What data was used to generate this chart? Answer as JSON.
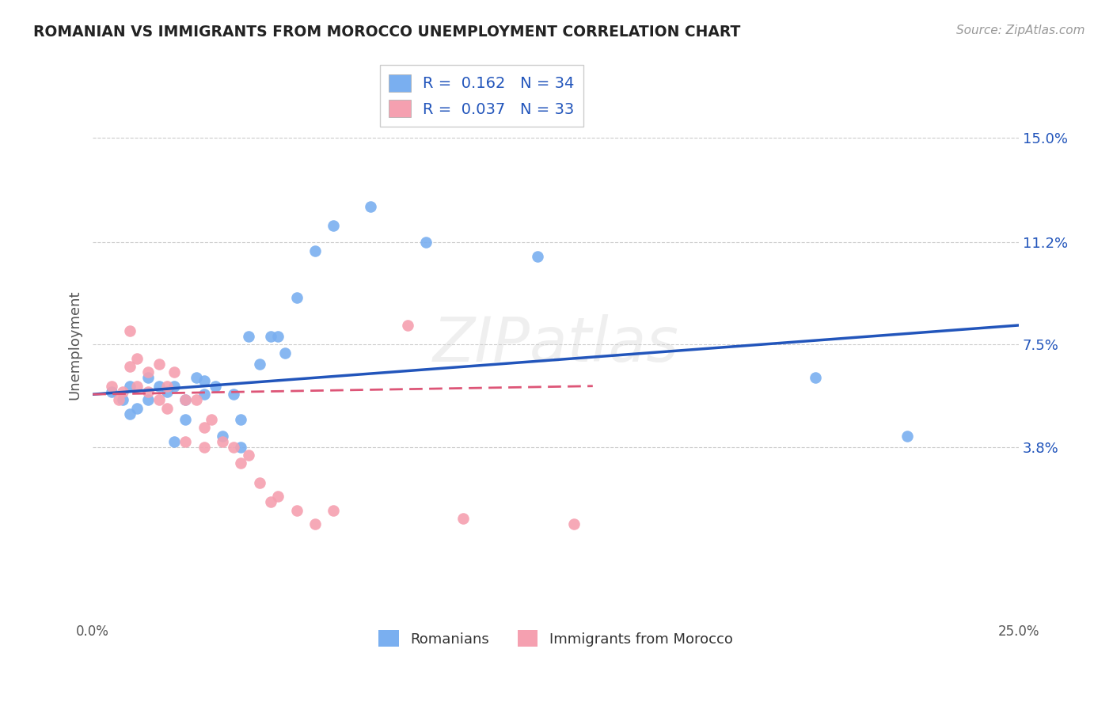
{
  "title": "ROMANIAN VS IMMIGRANTS FROM MOROCCO UNEMPLOYMENT CORRELATION CHART",
  "source": "Source: ZipAtlas.com",
  "ylabel": "Unemployment",
  "ytick_labels": [
    "15.0%",
    "11.2%",
    "7.5%",
    "3.8%"
  ],
  "ytick_values": [
    0.15,
    0.112,
    0.075,
    0.038
  ],
  "xlim": [
    0.0,
    0.25
  ],
  "ylim": [
    -0.025,
    0.175
  ],
  "legend_entry1": "R =  0.162   N = 34",
  "legend_entry2": "R =  0.037   N = 33",
  "legend_label1": "Romanians",
  "legend_label2": "Immigrants from Morocco",
  "color_blue": "#7aaff0",
  "color_pink": "#f5a0b0",
  "color_line_blue": "#2255bb",
  "color_line_pink": "#dd5577",
  "watermark": "ZIPatlas",
  "blue_x": [
    0.005,
    0.008,
    0.01,
    0.01,
    0.012,
    0.015,
    0.015,
    0.018,
    0.02,
    0.022,
    0.022,
    0.025,
    0.025,
    0.028,
    0.03,
    0.03,
    0.033,
    0.035,
    0.038,
    0.04,
    0.04,
    0.042,
    0.045,
    0.048,
    0.05,
    0.052,
    0.055,
    0.06,
    0.065,
    0.075,
    0.09,
    0.12,
    0.195,
    0.22
  ],
  "blue_y": [
    0.058,
    0.055,
    0.06,
    0.05,
    0.052,
    0.063,
    0.055,
    0.06,
    0.058,
    0.06,
    0.04,
    0.055,
    0.048,
    0.063,
    0.062,
    0.057,
    0.06,
    0.042,
    0.057,
    0.048,
    0.038,
    0.078,
    0.068,
    0.078,
    0.078,
    0.072,
    0.092,
    0.109,
    0.118,
    0.125,
    0.112,
    0.107,
    0.063,
    0.042
  ],
  "pink_x": [
    0.005,
    0.007,
    0.008,
    0.01,
    0.01,
    0.012,
    0.012,
    0.015,
    0.015,
    0.018,
    0.018,
    0.02,
    0.02,
    0.022,
    0.025,
    0.025,
    0.028,
    0.03,
    0.03,
    0.032,
    0.035,
    0.038,
    0.04,
    0.042,
    0.045,
    0.048,
    0.05,
    0.055,
    0.06,
    0.065,
    0.085,
    0.1,
    0.13
  ],
  "pink_y": [
    0.06,
    0.055,
    0.058,
    0.08,
    0.067,
    0.07,
    0.06,
    0.065,
    0.058,
    0.068,
    0.055,
    0.06,
    0.052,
    0.065,
    0.055,
    0.04,
    0.055,
    0.045,
    0.038,
    0.048,
    0.04,
    0.038,
    0.032,
    0.035,
    0.025,
    0.018,
    0.02,
    0.015,
    0.01,
    0.015,
    0.082,
    0.012,
    0.01
  ],
  "blue_trend_x": [
    0.0,
    0.25
  ],
  "blue_trend_y": [
    0.057,
    0.082
  ],
  "pink_trend_x": [
    0.0,
    0.135
  ],
  "pink_trend_y": [
    0.057,
    0.06
  ],
  "xtick_positions": [
    0.0,
    0.25
  ],
  "xtick_labels": [
    "0.0%",
    "25.0%"
  ]
}
